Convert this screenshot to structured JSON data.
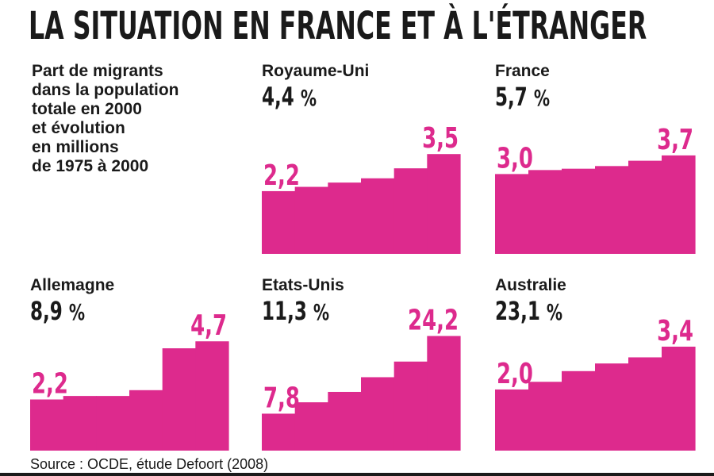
{
  "title": "LA SITUATION EN FRANCE ET À L'ÉTRANGER",
  "intro": "Part de migrants\ndans la population\ntotale en 2000\net évolution\nen millions\nde 1975 à 2000",
  "source": "Source : OCDE, étude Defoort (2008)",
  "pct_sign": "%",
  "colors": {
    "bar": "#dd2a8d",
    "text": "#1a1a1a"
  },
  "chart_data": [
    {
      "type": "bar",
      "title": "Royaume-Uni",
      "share": "4,4",
      "first_label": "2,2",
      "last_label": "3,5",
      "values": [
        2.2,
        2.35,
        2.5,
        2.65,
        3.0,
        3.5
      ]
    },
    {
      "type": "bar",
      "title": "France",
      "share": "5,7",
      "first_label": "3,0",
      "last_label": "3,7",
      "values": [
        3.0,
        3.15,
        3.2,
        3.3,
        3.5,
        3.7
      ]
    },
    {
      "type": "bar",
      "title": "Allemagne",
      "share": "8,9",
      "first_label": "2,2",
      "last_label": "4,7",
      "values": [
        2.2,
        2.35,
        2.35,
        2.6,
        4.4,
        4.7
      ]
    },
    {
      "type": "bar",
      "title": "Etats-Unis",
      "share": "11,3",
      "first_label": "7,8",
      "last_label": "24,2",
      "values": [
        7.8,
        10.2,
        12.4,
        15.5,
        18.8,
        24.2
      ]
    },
    {
      "type": "bar",
      "title": "Australie",
      "share": "23,1",
      "first_label": "2,0",
      "last_label": "3,4",
      "values": [
        2.0,
        2.25,
        2.6,
        2.85,
        3.05,
        3.4
      ]
    }
  ]
}
